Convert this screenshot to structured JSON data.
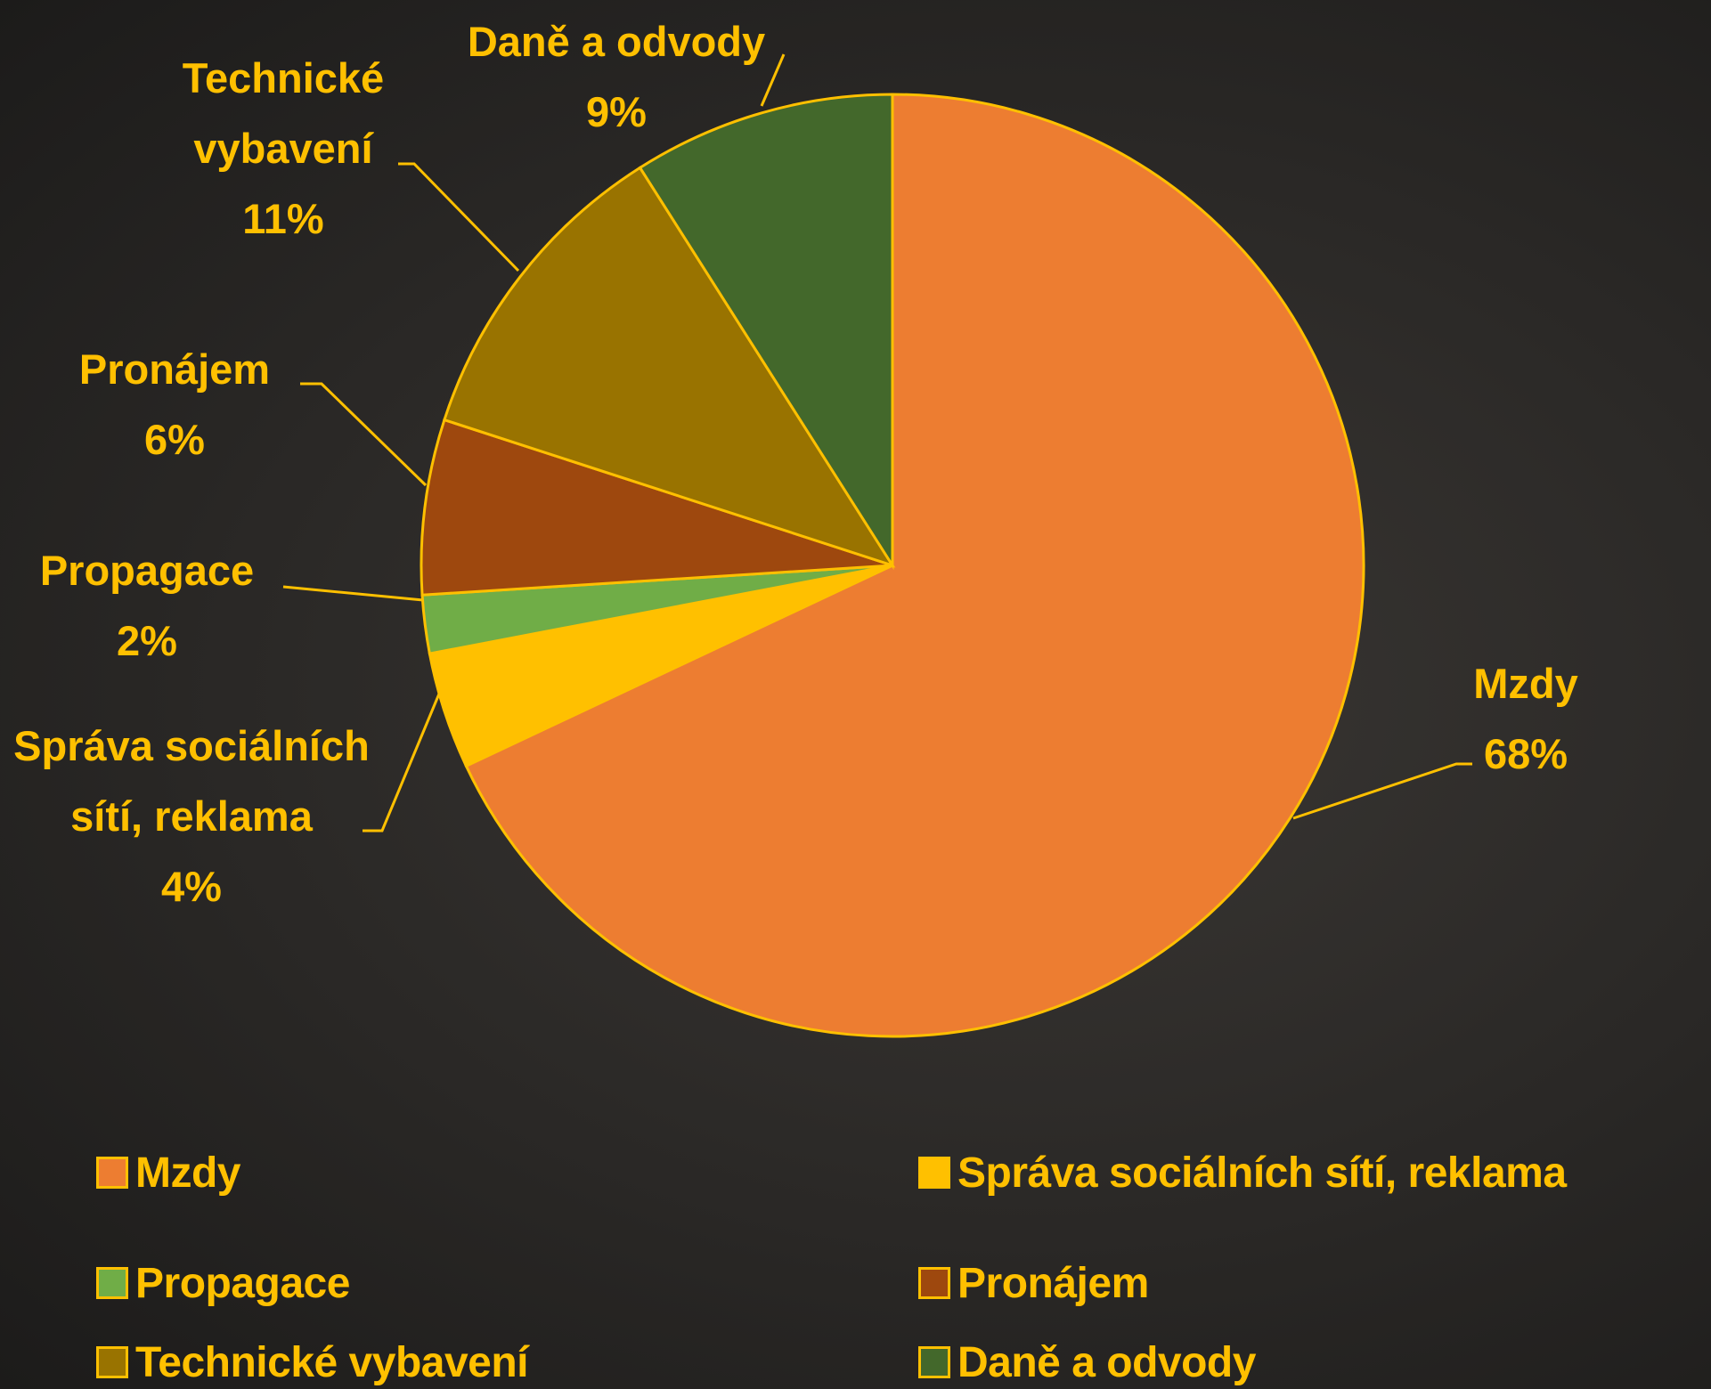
{
  "chart_data": {
    "type": "pie",
    "categories": [
      "Mzdy",
      "Správa sociálních sítí, reklama",
      "Propagace",
      "Pronájem",
      "Technické vybavení",
      "Daně a odvody"
    ],
    "values": [
      68,
      4,
      2,
      6,
      11,
      9
    ],
    "value_labels": [
      "68%",
      "4%",
      "2%",
      "6%",
      "11%",
      "9%"
    ],
    "colors": [
      "#ed7d31",
      "#ffc000",
      "#70ad47",
      "#9e480e",
      "#997300",
      "#43682b"
    ],
    "legend": "bottom"
  }
}
